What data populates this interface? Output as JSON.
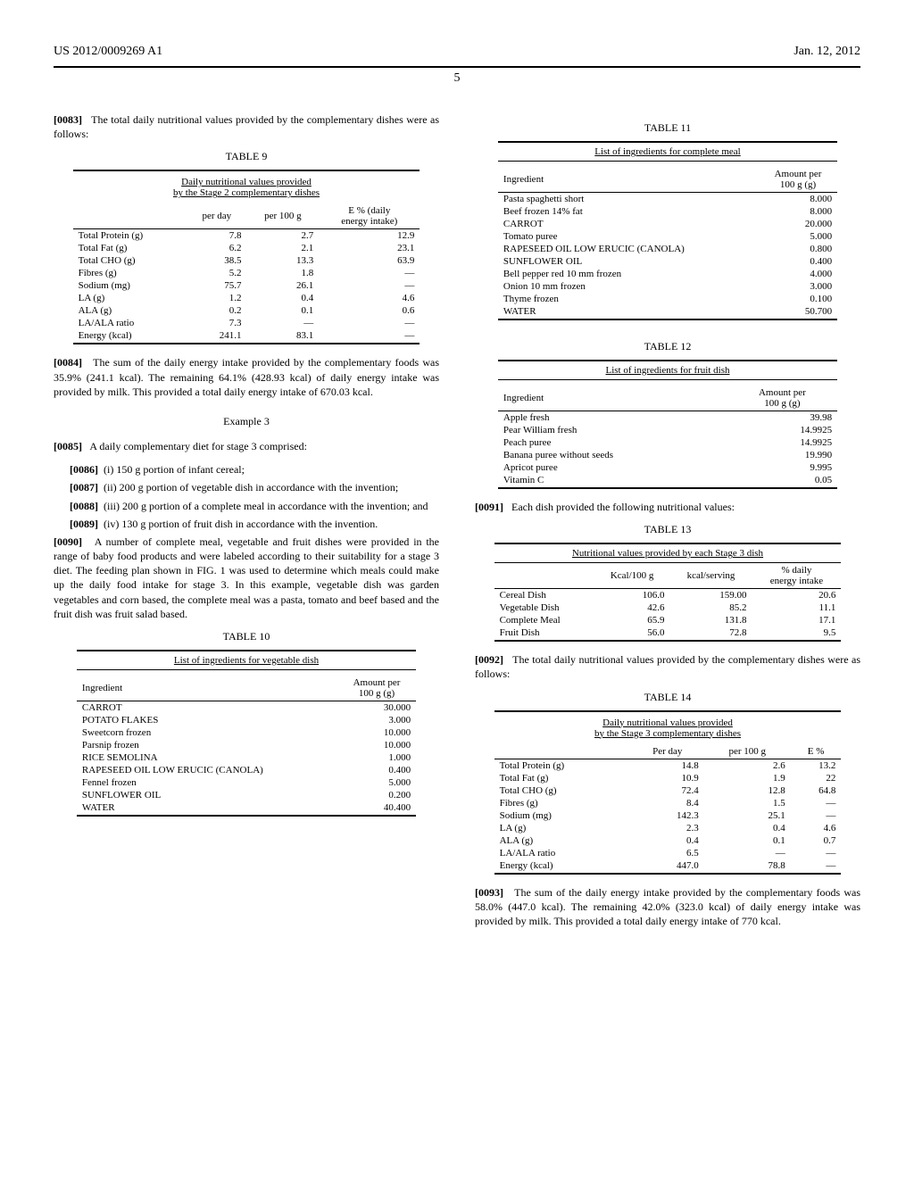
{
  "header": {
    "left": "US 2012/0009269 A1",
    "right": "Jan. 12, 2012",
    "page": "5"
  },
  "p0083": {
    "num": "[0083]",
    "text": "The total daily nutritional values provided by the complementary dishes were as follows:"
  },
  "table9": {
    "label": "TABLE 9",
    "caption": "Daily nutritional values provided\nby the Stage 2 complementary dishes",
    "headers": [
      "",
      "per day",
      "per 100 g",
      "E % (daily\nenergy intake)"
    ],
    "rows": [
      [
        "Total Protein (g)",
        "7.8",
        "2.7",
        "12.9"
      ],
      [
        "Total Fat (g)",
        "6.2",
        "2.1",
        "23.1"
      ],
      [
        "Total CHO (g)",
        "38.5",
        "13.3",
        "63.9"
      ],
      [
        "Fibres (g)",
        "5.2",
        "1.8",
        "—"
      ],
      [
        "Sodium (mg)",
        "75.7",
        "26.1",
        "—"
      ],
      [
        "LA (g)",
        "1.2",
        "0.4",
        "4.6"
      ],
      [
        "ALA (g)",
        "0.2",
        "0.1",
        "0.6"
      ],
      [
        "LA/ALA ratio",
        "7.3",
        "—",
        "—"
      ],
      [
        "Energy (kcal)",
        "241.1",
        "83.1",
        "—"
      ]
    ]
  },
  "p0084": {
    "num": "[0084]",
    "text": "The sum of the daily energy intake provided by the complementary foods was 35.9% (241.1 kcal). The remaining 64.1% (428.93 kcal) of daily energy intake was provided by milk. This provided a total daily energy intake of 670.03 kcal."
  },
  "example3": "Example 3",
  "p0085": {
    "num": "[0085]",
    "text": "A daily complementary diet for stage 3 comprised:"
  },
  "p0086": {
    "num": "[0086]",
    "text": "(i) 150 g portion of infant cereal;"
  },
  "p0087": {
    "num": "[0087]",
    "text": "(ii) 200 g portion of vegetable dish in accordance with the invention;"
  },
  "p0088": {
    "num": "[0088]",
    "text": "(iii) 200 g portion of a complete meal in accordance with the invention; and"
  },
  "p0089": {
    "num": "[0089]",
    "text": "(iv) 130 g portion of fruit dish in accordance with the invention."
  },
  "p0090": {
    "num": "[0090]",
    "text": "A number of complete meal, vegetable and fruit dishes were provided in the range of baby food products and were labeled according to their suitability for a stage 3 diet. The feeding plan shown in FIG. 1 was used to determine which meals could make up the daily food intake for stage 3. In this example, vegetable dish was garden vegetables and corn based, the complete meal was a pasta, tomato and beef based and the fruit dish was fruit salad based."
  },
  "table10": {
    "label": "TABLE 10",
    "caption": "List of ingredients for vegetable dish",
    "headers": [
      "Ingredient",
      "Amount per\n100 g (g)"
    ],
    "rows": [
      [
        "CARROT",
        "30.000"
      ],
      [
        "POTATO FLAKES",
        "3.000"
      ],
      [
        "Sweetcorn frozen",
        "10.000"
      ],
      [
        "Parsnip frozen",
        "10.000"
      ],
      [
        "RICE SEMOLINA",
        "1.000"
      ],
      [
        "RAPESEED OIL LOW ERUCIC (CANOLA)",
        "0.400"
      ],
      [
        "Fennel frozen",
        "5.000"
      ],
      [
        "SUNFLOWER OIL",
        "0.200"
      ],
      [
        "WATER",
        "40.400"
      ]
    ]
  },
  "table11": {
    "label": "TABLE 11",
    "caption": "List of ingredients for complete meal",
    "headers": [
      "Ingredient",
      "Amount per\n100 g (g)"
    ],
    "rows": [
      [
        "Pasta spaghetti short",
        "8.000"
      ],
      [
        "Beef frozen 14% fat",
        "8.000"
      ],
      [
        "CARROT",
        "20.000"
      ],
      [
        "Tomato puree",
        "5.000"
      ],
      [
        "RAPESEED OIL LOW ERUCIC (CANOLA)",
        "0.800"
      ],
      [
        "SUNFLOWER OIL",
        "0.400"
      ],
      [
        "Bell pepper red 10 mm frozen",
        "4.000"
      ],
      [
        "Onion 10 mm frozen",
        "3.000"
      ],
      [
        "Thyme frozen",
        "0.100"
      ],
      [
        "WATER",
        "50.700"
      ]
    ]
  },
  "table12": {
    "label": "TABLE 12",
    "caption": "List of ingredients for fruit dish",
    "headers": [
      "Ingredient",
      "Amount per\n100 g (g)"
    ],
    "rows": [
      [
        "Apple fresh",
        "39.98"
      ],
      [
        "Pear William fresh",
        "14.9925"
      ],
      [
        "Peach puree",
        "14.9925"
      ],
      [
        "Banana puree without seeds",
        "19.990"
      ],
      [
        "Apricot puree",
        "9.995"
      ],
      [
        "Vitamin C",
        "0.05"
      ]
    ]
  },
  "p0091": {
    "num": "[0091]",
    "text": "Each dish provided the following nutritional values:"
  },
  "table13": {
    "label": "TABLE 13",
    "caption": "Nutritional values provided by each Stage 3 dish",
    "headers": [
      "",
      "Kcal/100 g",
      "kcal/serving",
      "% daily\nenergy intake"
    ],
    "rows": [
      [
        "Cereal Dish",
        "106.0",
        "159.00",
        "20.6"
      ],
      [
        "Vegetable Dish",
        "42.6",
        "85.2",
        "11.1"
      ],
      [
        "Complete Meal",
        "65.9",
        "131.8",
        "17.1"
      ],
      [
        "Fruit Dish",
        "56.0",
        "72.8",
        "9.5"
      ]
    ]
  },
  "p0092": {
    "num": "[0092]",
    "text": "The total daily nutritional values provided by the complementary dishes were as follows:"
  },
  "table14": {
    "label": "TABLE 14",
    "caption": "Daily nutritional values provided\nby the Stage 3 complementary dishes",
    "headers": [
      "",
      "Per day",
      "per 100 g",
      "E %"
    ],
    "rows": [
      [
        "Total Protein (g)",
        "14.8",
        "2.6",
        "13.2"
      ],
      [
        "Total Fat (g)",
        "10.9",
        "1.9",
        "22"
      ],
      [
        "Total CHO (g)",
        "72.4",
        "12.8",
        "64.8"
      ],
      [
        "Fibres (g)",
        "8.4",
        "1.5",
        "—"
      ],
      [
        "Sodium (mg)",
        "142.3",
        "25.1",
        "—"
      ],
      [
        "LA (g)",
        "2.3",
        "0.4",
        "4.6"
      ],
      [
        "ALA (g)",
        "0.4",
        "0.1",
        "0.7"
      ],
      [
        "LA/ALA ratio",
        "6.5",
        "—",
        "—"
      ],
      [
        "Energy (kcal)",
        "447.0",
        "78.8",
        "—"
      ]
    ]
  },
  "p0093": {
    "num": "[0093]",
    "text": "The sum of the daily energy intake provided by the complementary foods was 58.0% (447.0 kcal). The remaining 42.0% (323.0 kcal) of daily energy intake was provided by milk. This provided a total daily energy intake of 770 kcal."
  }
}
